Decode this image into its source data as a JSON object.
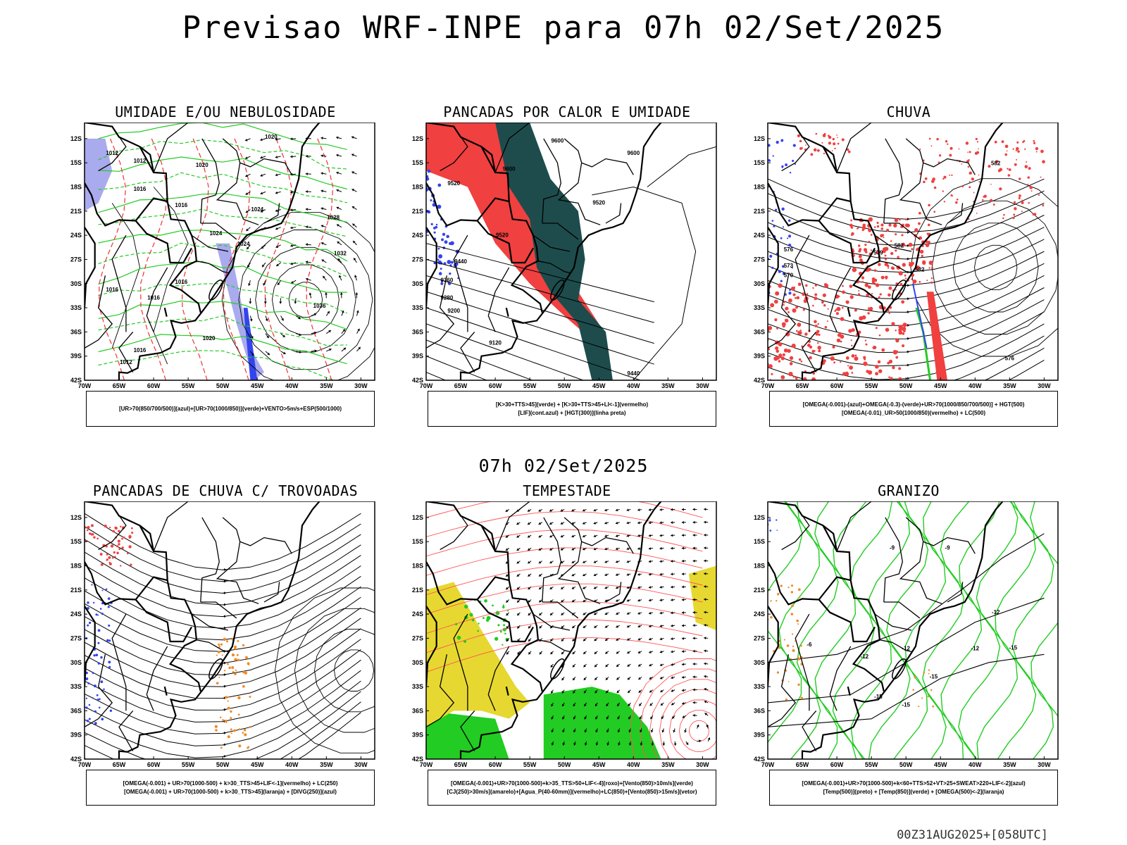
{
  "title": "Previsao WRF-INPE  para 07h 02/Set/2025",
  "mid_title": "07h 02/Set/2025",
  "footer": "00Z31AUG2025+[058UTC]",
  "lat_labels": [
    "12S",
    "15S",
    "18S",
    "21S",
    "24S",
    "27S",
    "30S",
    "33S",
    "36S",
    "39S",
    "42S"
  ],
  "lon_labels": [
    "70W",
    "65W",
    "60W",
    "55W",
    "50W",
    "45W",
    "40W",
    "35W",
    "30W"
  ],
  "colors": {
    "red": "#f04040",
    "green": "#22cc22",
    "blue": "#3344ee",
    "lightblue": "#aaaaee",
    "darkteal": "#1e4c4c",
    "yellow": "#e6d830",
    "orange": "#f08a28",
    "black": "#000000"
  },
  "panels": [
    {
      "title": "UMIDADE E/OU NEBULOSIDADE",
      "legend": [
        "[UR>70(850/700/500)](azul)+[UR>70(1000/850)](verde)+VENTO>5m/s+ESP(500/1000)"
      ],
      "contour_labels": [
        "1012",
        "1012",
        "1016",
        "1016",
        "1020",
        "1020",
        "1024",
        "1024",
        "1028",
        "1032",
        "1036",
        "1016",
        "1012",
        "1020",
        "1016",
        "1024",
        "1016",
        "1016"
      ]
    },
    {
      "title": "PANCADAS POR CALOR E UMIDADE",
      "legend": [
        "[K>30+TTS>45](verde) + [K>30+TTS>45+LI<-1](vermelho)",
        "[LIF](cont.azul) + [HGT(300)](linha preta)"
      ],
      "contour_labels": [
        "9600",
        "9600",
        "9600",
        "9520",
        "9520",
        "9520",
        "9440",
        "9360",
        "9280",
        "9200",
        "9120",
        "9440"
      ]
    },
    {
      "title": "CHUVA",
      "legend": [
        "[OMEGA(-0.001)-(azul)+OMEGA(-0.3)-(verde)+UR>70(1000/850/700/500)] + HGT(500)",
        "[OMEGA(-0.01)_UR>50(1000/850)(vermelho) + LC(500)"
      ],
      "contour_labels": [
        "582",
        "582",
        "579",
        "576",
        "573",
        "570",
        "582",
        "576"
      ]
    },
    {
      "title": "PANCADAS DE CHUVA C/ TROVOADAS",
      "legend": [
        "[OMEGA(-0.001) + UR>70(1000-500) + k>30_TTS>45+LIF<-1](vermelho) + LC(250)",
        "[OMEGA(-0.001) + UR>70(1000-500) + k>30_TTS>45](laranja) + [DIVG(250)](azul)"
      ],
      "contour_labels": []
    },
    {
      "title": "TEMPESTADE",
      "legend": [
        "[OMEGA(-0.001)+UR>70(1000-500)+k>35_TTS>50+LIF<-4](roxo)+[Vento(850)>10m/s](verde)",
        "[CJ(250)>30m/s](amarelo)+[Agua_P(40-60mm)](vermelho)+LC(850)+[Vento(850)>15m/s](vetor)"
      ],
      "contour_labels": []
    },
    {
      "title": "GRANIZO",
      "legend": [
        "[OMEGA(-0.001)+UR>70(1000-500)+k<60+TTS>52+VT>25+SWEAT>220+LIF<-2](azul)",
        "[Temp(500)](preto) + [Temp(850)](verde) + [OMEGA(500)<-2](laranja)"
      ],
      "contour_labels": [
        "-9",
        "-9",
        "-12",
        "-12",
        "-12",
        "-15",
        "-15",
        "-12",
        "-6",
        "-15",
        "-15"
      ]
    }
  ]
}
